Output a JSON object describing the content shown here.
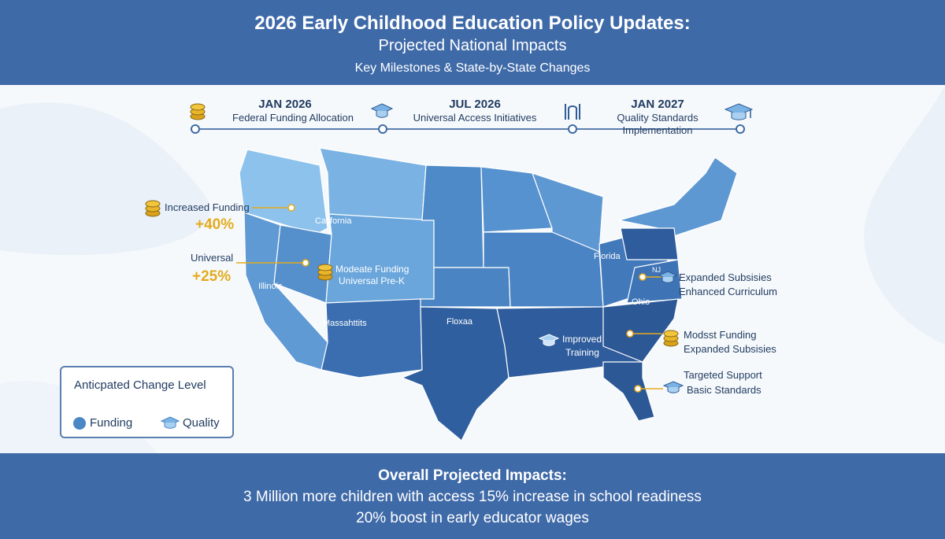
{
  "header": {
    "title": "2026 Early Childhood Education Policy Updates:",
    "subtitle": "Projected National Impacts",
    "tagline": "Key Milestones & State-by-State Changes"
  },
  "timeline": [
    {
      "date": "JAN 2026",
      "label": "Federal Funding Allocation",
      "icon": "coin-stack-icon"
    },
    {
      "date": "JUL 2026",
      "label": "Universal Access Initiatives",
      "icon": "graduation-cap-icon"
    },
    {
      "date": "JAN 2027",
      "label_line1": "Quality Standards",
      "label_line2": "Implementation",
      "icon": "graduation-cap-icon"
    }
  ],
  "left_callouts": {
    "increased_funding": {
      "label": "Increased Funding",
      "value": "+40%"
    },
    "universal": {
      "label": "Universal",
      "value": "+25%"
    }
  },
  "map_labels": {
    "california": "California",
    "illinois": "Illinois",
    "massachusetts": "Massahttits",
    "moderate_line1": "Modeate Funding",
    "moderate_line2": "Universal Pre-K",
    "floxaa": "Floxaa",
    "florida": "Florida",
    "ohio": "Ohio",
    "nj": "NJ",
    "improved_line1": "Improved",
    "improved_line2": "Training"
  },
  "right_callouts": {
    "expanded_line1": "Expanded Subsisies",
    "expanded_line2": "Enhanced Curriculum",
    "modest_line1": "Modsst Funding",
    "modest_line2": "Expanded Subsisies",
    "targeted_line1": "Targeted Support",
    "targeted_line2": "Basic Standards"
  },
  "legend": {
    "title": "Anticpated Change Level",
    "funding": "Funding",
    "quality": "Quality"
  },
  "footer": {
    "title": "Overall Projected Impacts:",
    "line1": "3 Million more children with access 15% increase in school readiness",
    "line2": "20% boost in early educator wages"
  },
  "colors": {
    "banner": "#3f6aa8",
    "accent_gold": "#e3ab1d",
    "light_blue": "#7ab3e3",
    "mid_blue": "#4b86c5",
    "dark_blue": "#2f5b97"
  }
}
